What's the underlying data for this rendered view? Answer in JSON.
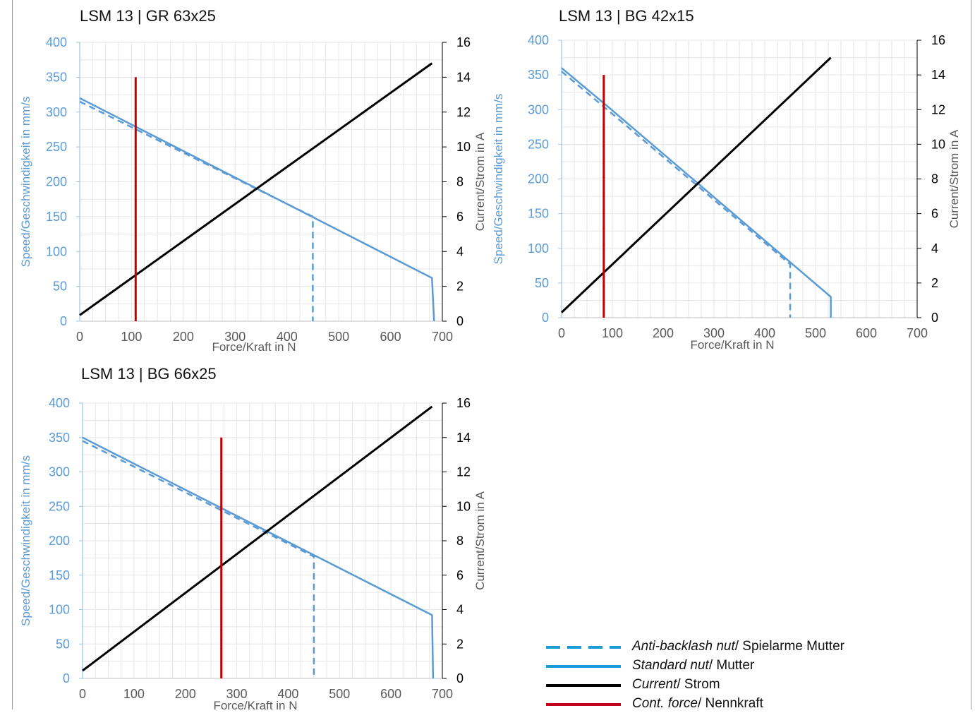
{
  "colors": {
    "speed": "#5b9bd5",
    "speed_axis": "#5b9bd5",
    "current": "#000000",
    "force": "#c00000",
    "grid": "#e6e6e6",
    "legend_blue": "#1c9ad6",
    "legend_red": "#c0001a"
  },
  "chart_data": [
    {
      "type": "line",
      "title": "LSM 13 | GR 63x25",
      "xlabel": "Force/Kraft in N",
      "ylabel": "Speed/Geschwindigkeit in mm/s",
      "y2label": "Current/Strom in A",
      "xlim": [
        0,
        700
      ],
      "ylim": [
        0,
        400
      ],
      "y2lim": [
        0,
        16
      ],
      "xticks": [
        "0",
        "100",
        "200",
        "300",
        "400",
        "500",
        "600",
        "700"
      ],
      "yticks": [
        "0",
        "50",
        "100",
        "150",
        "200",
        "250",
        "300",
        "350",
        "400"
      ],
      "y2ticks": [
        "0",
        "2",
        "4",
        "6",
        "8",
        "10",
        "12",
        "14",
        "16"
      ],
      "grid": true,
      "series": [
        {
          "key": "standard",
          "values_xy": [
            [
              0,
              320
            ],
            [
              680,
              62
            ],
            [
              684,
              0
            ]
          ]
        },
        {
          "key": "anti_backlash",
          "values_xy": [
            [
              0,
              315
            ],
            [
              450,
              150
            ],
            [
              450,
              0
            ]
          ]
        },
        {
          "key": "current",
          "axis": "y2",
          "values_xy": [
            [
              0,
              0.35
            ],
            [
              680,
              14.8
            ]
          ]
        },
        {
          "key": "cont_force",
          "values_xy": [
            [
              108,
              0
            ],
            [
              108,
              350
            ]
          ]
        }
      ]
    },
    {
      "type": "line",
      "title": "LSM 13 | BG 42x15",
      "xlabel": "Force/Kraft in N",
      "ylabel": "Speed/Geschwindigkeit in mm/s",
      "y2label": "Current/Strom in A",
      "xlim": [
        0,
        700
      ],
      "ylim": [
        0,
        400
      ],
      "y2lim": [
        0,
        16
      ],
      "xticks": [
        "0",
        "100",
        "200",
        "300",
        "400",
        "500",
        "600",
        "700"
      ],
      "yticks": [
        "0",
        "50",
        "100",
        "150",
        "200",
        "250",
        "300",
        "350",
        "400"
      ],
      "y2ticks": [
        "0",
        "2",
        "4",
        "6",
        "8",
        "10",
        "12",
        "14",
        "16"
      ],
      "grid": true,
      "series": [
        {
          "key": "standard",
          "values_xy": [
            [
              0,
              360
            ],
            [
              90,
              305
            ],
            [
              530,
              30
            ],
            [
              530,
              0
            ]
          ]
        },
        {
          "key": "anti_backlash",
          "values_xy": [
            [
              0,
              355
            ],
            [
              90,
              300
            ],
            [
              450,
              77
            ],
            [
              450,
              0
            ]
          ]
        },
        {
          "key": "current",
          "axis": "y2",
          "values_xy": [
            [
              0,
              0.3
            ],
            [
              530,
              15.0
            ]
          ]
        },
        {
          "key": "cont_force",
          "values_xy": [
            [
              83,
              0
            ],
            [
              83,
              350
            ]
          ]
        }
      ]
    },
    {
      "type": "line",
      "title": "LSM 13 | BG 66x25",
      "xlabel": "Force/Kraft in N",
      "ylabel": "Speed/Geschwindigkeit in mm/s",
      "y2label": "Current/Strom in A",
      "xlim": [
        0,
        700
      ],
      "ylim": [
        0,
        400
      ],
      "y2lim": [
        0,
        16
      ],
      "xticks": [
        "0",
        "100",
        "200",
        "300",
        "400",
        "500",
        "600",
        "700"
      ],
      "yticks": [
        "0",
        "50",
        "100",
        "150",
        "200",
        "250",
        "300",
        "350",
        "400"
      ],
      "y2ticks": [
        "0",
        "2",
        "4",
        "6",
        "8",
        "10",
        "12",
        "14",
        "16"
      ],
      "grid": true,
      "series": [
        {
          "key": "standard",
          "values_xy": [
            [
              0,
              350
            ],
            [
              680,
              92
            ],
            [
              682,
              0
            ]
          ]
        },
        {
          "key": "anti_backlash",
          "values_xy": [
            [
              0,
              345
            ],
            [
              450,
              177
            ],
            [
              450,
              0
            ]
          ]
        },
        {
          "key": "current",
          "axis": "y2",
          "values_xy": [
            [
              0,
              0.45
            ],
            [
              680,
              15.8
            ]
          ]
        },
        {
          "key": "cont_force",
          "values_xy": [
            [
              270,
              0
            ],
            [
              270,
              350
            ]
          ]
        }
      ]
    }
  ],
  "legend": {
    "placement": "bottom-right",
    "items": [
      {
        "key": "anti_backlash",
        "style": "dashed",
        "en": "Anti-backlash nut",
        "de": "/ Spielarme Mutter"
      },
      {
        "key": "standard",
        "style": "standard",
        "en": "Standard nut",
        "de": "/ Mutter"
      },
      {
        "key": "current",
        "style": "current",
        "en": "Current",
        "de": "/ Strom"
      },
      {
        "key": "cont_force",
        "style": "force",
        "en": "Cont. force",
        "de": "/ Nennkraft"
      }
    ]
  }
}
